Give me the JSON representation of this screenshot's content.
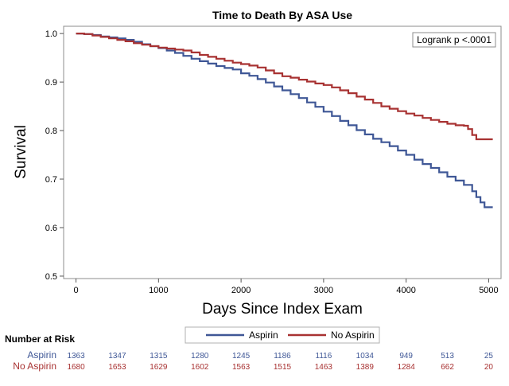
{
  "chart_data": {
    "type": "line",
    "title": "Time to Death By ASA Use",
    "xlabel": "Days Since Index Exam",
    "ylabel": "Survival",
    "xlim": [
      -150,
      5150
    ],
    "ylim": [
      0.495,
      1.015
    ],
    "xticks": [
      0,
      1000,
      2000,
      3000,
      4000,
      5000
    ],
    "yticks": [
      0.5,
      0.6,
      0.7,
      0.8,
      0.9,
      1.0
    ],
    "yticklabels": [
      "0.5",
      "0.6",
      "0.7",
      "0.8",
      "0.9",
      "1.0"
    ],
    "annotation": "Logrank p <.0001",
    "legend_position": "bottom-center",
    "series": [
      {
        "name": "Aspirin",
        "color": "#3f5796",
        "x": [
          0,
          100,
          200,
          300,
          400,
          500,
          600,
          700,
          800,
          900,
          1000,
          1100,
          1200,
          1300,
          1400,
          1500,
          1600,
          1700,
          1800,
          1900,
          2000,
          2100,
          2200,
          2300,
          2400,
          2500,
          2600,
          2700,
          2800,
          2900,
          3000,
          3100,
          3200,
          3300,
          3400,
          3500,
          3600,
          3700,
          3800,
          3900,
          4000,
          4100,
          4200,
          4300,
          4400,
          4500,
          4600,
          4700,
          4800,
          4850,
          4900,
          4950,
          5000,
          5050
        ],
        "y": [
          1.0,
          0.999,
          0.997,
          0.994,
          0.992,
          0.99,
          0.987,
          0.983,
          0.978,
          0.974,
          0.97,
          0.965,
          0.96,
          0.954,
          0.948,
          0.943,
          0.938,
          0.933,
          0.929,
          0.926,
          0.918,
          0.913,
          0.906,
          0.899,
          0.891,
          0.883,
          0.875,
          0.867,
          0.858,
          0.849,
          0.839,
          0.83,
          0.82,
          0.811,
          0.801,
          0.792,
          0.783,
          0.776,
          0.768,
          0.759,
          0.75,
          0.74,
          0.731,
          0.723,
          0.714,
          0.705,
          0.697,
          0.688,
          0.675,
          0.663,
          0.652,
          0.642,
          0.642,
          0.642
        ]
      },
      {
        "name": "No Aspirin",
        "color": "#a83232",
        "x": [
          0,
          100,
          200,
          300,
          400,
          500,
          600,
          700,
          800,
          900,
          1000,
          1100,
          1200,
          1300,
          1400,
          1500,
          1600,
          1700,
          1800,
          1900,
          2000,
          2100,
          2200,
          2300,
          2400,
          2500,
          2600,
          2700,
          2800,
          2900,
          3000,
          3100,
          3200,
          3300,
          3400,
          3500,
          3600,
          3700,
          3800,
          3900,
          4000,
          4100,
          4200,
          4300,
          4400,
          4500,
          4600,
          4700,
          4750,
          4800,
          4850,
          5050
        ],
        "y": [
          1.0,
          0.999,
          0.996,
          0.993,
          0.99,
          0.987,
          0.984,
          0.98,
          0.977,
          0.974,
          0.971,
          0.969,
          0.967,
          0.965,
          0.961,
          0.956,
          0.952,
          0.948,
          0.944,
          0.94,
          0.937,
          0.934,
          0.93,
          0.924,
          0.918,
          0.912,
          0.909,
          0.905,
          0.901,
          0.897,
          0.894,
          0.889,
          0.883,
          0.877,
          0.87,
          0.864,
          0.857,
          0.85,
          0.845,
          0.84,
          0.835,
          0.831,
          0.826,
          0.822,
          0.818,
          0.814,
          0.811,
          0.81,
          0.803,
          0.791,
          0.782,
          0.782
        ]
      }
    ],
    "risk_table": {
      "title": "Number at Risk",
      "times": [
        0,
        500,
        1000,
        1500,
        2000,
        2500,
        3000,
        3500,
        4000,
        4500,
        5000
      ],
      "rows": [
        {
          "name": "Aspirin",
          "color": "#3f5796",
          "values": [
            "1363",
            "1347",
            "1315",
            "1280",
            "1245",
            "1186",
            "1116",
            "1034",
            "949",
            "513",
            "25"
          ]
        },
        {
          "name": "No Aspirin",
          "color": "#a83232",
          "values": [
            "1680",
            "1653",
            "1629",
            "1602",
            "1563",
            "1515",
            "1463",
            "1389",
            "1284",
            "662",
            "20"
          ]
        }
      ]
    }
  }
}
